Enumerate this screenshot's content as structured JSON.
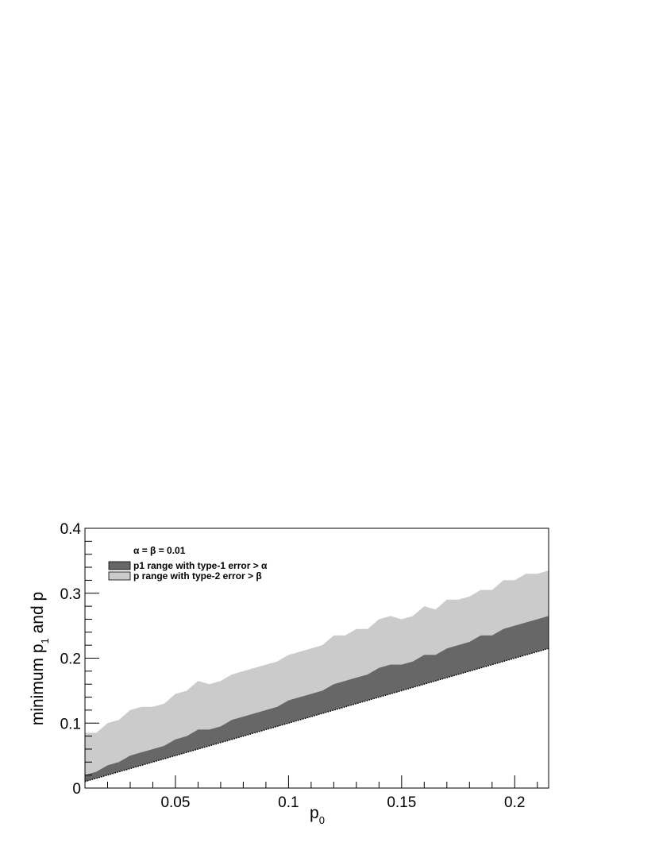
{
  "chart_data": {
    "type": "area",
    "title": "",
    "xlabel": "p0",
    "ylabel": "minimum p1 and p",
    "annotation": "α = β = 0.01",
    "xlim": [
      0.01,
      0.215
    ],
    "ylim": [
      0,
      0.4
    ],
    "x_ticks": [
      0.05,
      0.1,
      0.15,
      0.2
    ],
    "x_tick_labels": [
      "0.05",
      "0.1",
      "0.15",
      "0.2"
    ],
    "y_ticks": [
      0,
      0.1,
      0.2,
      0.3,
      0.4
    ],
    "y_tick_labels": [
      "0",
      "0.1",
      "0.2",
      "0.3",
      "0.4"
    ],
    "grid": false,
    "legend_position": "top-left",
    "x": [
      0.01,
      0.015,
      0.02,
      0.025,
      0.03,
      0.035,
      0.04,
      0.045,
      0.05,
      0.055,
      0.06,
      0.065,
      0.07,
      0.075,
      0.08,
      0.085,
      0.09,
      0.095,
      0.1,
      0.105,
      0.11,
      0.115,
      0.12,
      0.125,
      0.13,
      0.135,
      0.14,
      0.145,
      0.15,
      0.155,
      0.16,
      0.165,
      0.17,
      0.175,
      0.18,
      0.185,
      0.19,
      0.195,
      0.2,
      0.205,
      0.21,
      0.215
    ],
    "series": [
      {
        "name": "p1 range with type-1 error > α",
        "color": "#676767",
        "lower": "p0",
        "upper": [
          0.02,
          0.025,
          0.035,
          0.04,
          0.05,
          0.055,
          0.06,
          0.065,
          0.075,
          0.08,
          0.09,
          0.09,
          0.095,
          0.105,
          0.11,
          0.115,
          0.12,
          0.125,
          0.135,
          0.14,
          0.145,
          0.15,
          0.16,
          0.165,
          0.17,
          0.175,
          0.185,
          0.19,
          0.19,
          0.195,
          0.205,
          0.205,
          0.215,
          0.22,
          0.225,
          0.235,
          0.235,
          0.245,
          0.25,
          0.255,
          0.26,
          0.265
        ]
      },
      {
        "name": "p range with type-2 error > β",
        "color": "#cbcbcb",
        "lower": "p0",
        "upper": [
          0.085,
          0.085,
          0.1,
          0.105,
          0.12,
          0.125,
          0.125,
          0.13,
          0.145,
          0.15,
          0.165,
          0.16,
          0.165,
          0.175,
          0.18,
          0.185,
          0.19,
          0.195,
          0.205,
          0.21,
          0.215,
          0.22,
          0.235,
          0.235,
          0.245,
          0.245,
          0.26,
          0.265,
          0.26,
          0.265,
          0.28,
          0.275,
          0.29,
          0.29,
          0.295,
          0.305,
          0.305,
          0.32,
          0.32,
          0.33,
          0.33,
          0.335
        ]
      }
    ]
  },
  "legend": {
    "items": [
      {
        "label": "p1 range with type-1 error > α",
        "color": "#676767"
      },
      {
        "label": "p range with type-2 error > β",
        "color": "#cbcbcb"
      }
    ]
  }
}
